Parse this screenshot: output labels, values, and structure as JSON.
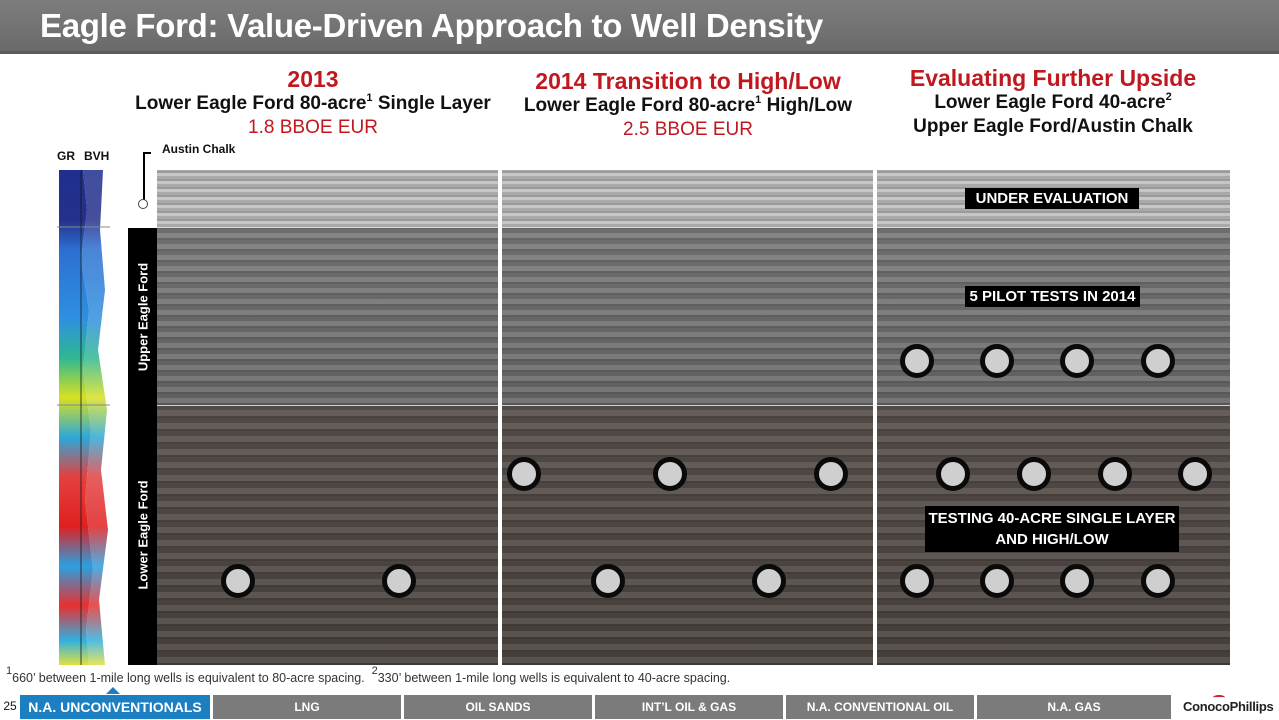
{
  "title": "Eagle Ford: Value-Driven Approach to Well Density",
  "columns": [
    {
      "heading": "2013",
      "line1": "Lower Eagle Ford 80-acre",
      "line1_sup": "1",
      "line1_rest": " Single Layer",
      "eur": "1.8 BBOE EUR"
    },
    {
      "heading": "2014 Transition to High/Low",
      "line1": "Lower Eagle Ford 80-acre",
      "line1_sup": "1",
      "line1_rest": " High/Low",
      "eur": "2.5 BBOE EUR"
    },
    {
      "heading": "Evaluating Further Upside",
      "line1": "Lower Eagle Ford 40-acre",
      "line1_sup": "2",
      "line2": "Upper Eagle Ford/Austin Chalk"
    }
  ],
  "log": {
    "gr_label": "GR",
    "bvh_label": "BVH",
    "austin_chalk_label": "Austin Chalk"
  },
  "zones": {
    "upper": "Upper Eagle Ford",
    "lower": "Lower Eagle Ford"
  },
  "callouts": {
    "under_evaluation": "UNDER EVALUATION",
    "pilot_tests": "5 PILOT TESTS IN 2014",
    "testing_line1": "TESTING 40-ACRE SINGLE LAYER",
    "testing_line2": "AND HIGH/LOW"
  },
  "footnote": {
    "sup1": "1",
    "text1": "660’ between 1-mile long wells is equivalent to 80-acre spacing.",
    "sup2": "2",
    "text2": "330’ between 1-mile long wells is equivalent to 40-acre spacing."
  },
  "nav": {
    "page_number": "25",
    "tabs": [
      "N.A. UNCONVENTIONALS",
      "LNG",
      "OIL SANDS",
      "INT’L OIL & GAS",
      "N.A. CONVENTIONAL OIL",
      "N.A. GAS"
    ],
    "active_tab": "N.A. UNCONVENTIONALS",
    "logo": "ConocoPhillips"
  },
  "colors": {
    "title_bar": "#6f6f6f",
    "heading_red": "#c0181f",
    "nav_active": "#1b7fc1",
    "nav_inactive": "#7b7b7b"
  }
}
